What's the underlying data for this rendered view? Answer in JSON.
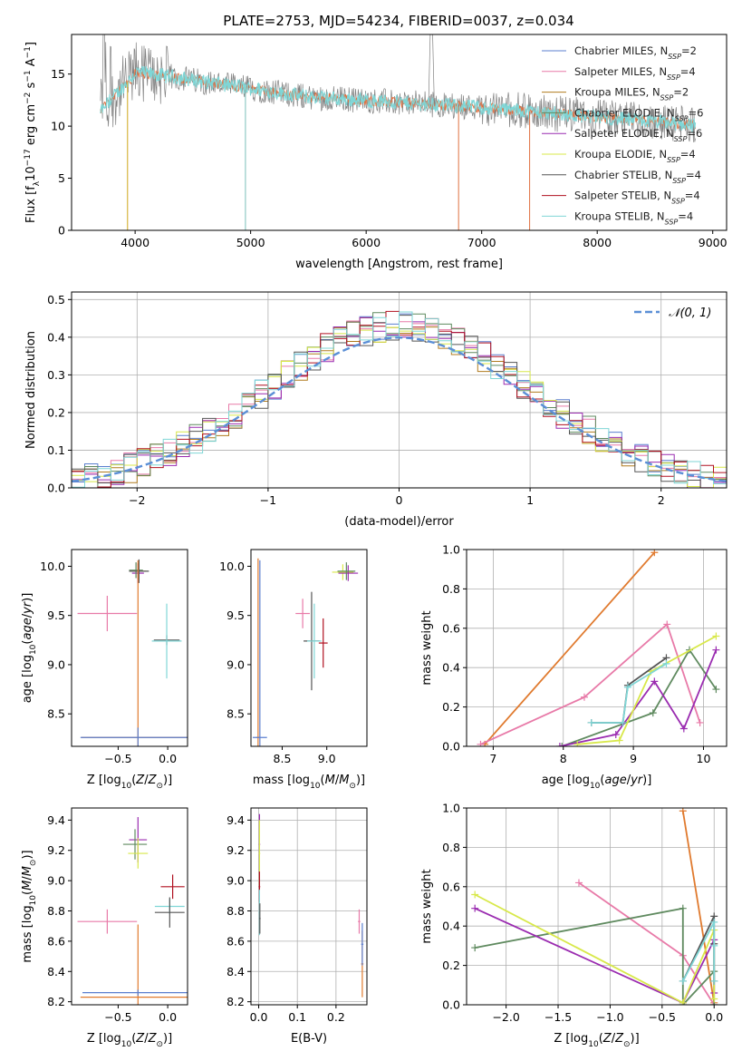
{
  "figure": {
    "title": "PLATE=2753, MJD=54234, FIBERID=0037, z=0.034"
  },
  "legend_series": [
    {
      "name": "Chabrier MILES, N_SSP=2",
      "main": "Chabrier MILES, N",
      "sub": "SSP",
      "tail": "=2",
      "color": "#5b7fcf"
    },
    {
      "name": "Salpeter MILES, N_SSP=4",
      "main": "Salpeter MILES, N",
      "sub": "SSP",
      "tail": "=4",
      "color": "#e87aa8"
    },
    {
      "name": "Kroupa MILES, N_SSP=2",
      "main": "Kroupa MILES, N",
      "sub": "SSP",
      "tail": "=2",
      "color": "#b07b1e"
    },
    {
      "name": "Chabrier ELODIE, N_SSP=6",
      "main": "Chabrier ELODIE, N",
      "sub": "SSP",
      "tail": "=6",
      "color": "#5f8a5f"
    },
    {
      "name": "Salpeter ELODIE, N_SSP=6",
      "main": "Salpeter ELODIE, N",
      "sub": "SSP",
      "tail": "=6",
      "color": "#9a2bb0"
    },
    {
      "name": "Kroupa ELODIE, N_SSP=4",
      "main": "Kroupa ELODIE, N",
      "sub": "SSP",
      "tail": "=4",
      "color": "#d8e84a"
    },
    {
      "name": "Chabrier STELIB, N_SSP=4",
      "main": "Chabrier STELIB, N",
      "sub": "SSP",
      "tail": "=4",
      "color": "#555555"
    },
    {
      "name": "Salpeter STELIB, N_SSP=4",
      "main": "Salpeter STELIB, N",
      "sub": "SSP",
      "tail": "=4",
      "color": "#b01020"
    },
    {
      "name": "Kroupa STELIB, N_SSP=4",
      "main": "Kroupa STELIB, N",
      "sub": "SSP",
      "tail": "=4",
      "color": "#7fd6d6"
    }
  ],
  "colors": {
    "data": "#808080",
    "model_main": "#7fd6d6",
    "model_alt": "#e07040",
    "normal_curve": "#5b8fd6",
    "orange_line": "#e07a2e",
    "grid": "#b0b0b0"
  },
  "chart_data": [
    {
      "id": "spectrum",
      "type": "line",
      "title": "PLATE=2753, MJD=54234, FIBERID=0037, z=0.034",
      "xlabel": "wavelength [Angstrom, rest frame]",
      "ylabel_parts": [
        "Flux [f",
        "λ",
        "10",
        "−17",
        " erg cm",
        "−2",
        " s",
        "−1",
        " A",
        "−1",
        "]"
      ],
      "xlim": [
        3450,
        9120
      ],
      "ylim": [
        0,
        18.8
      ],
      "xticks": [
        4000,
        5000,
        6000,
        7000,
        8000,
        9000
      ],
      "yticks": [
        0,
        5,
        10,
        15
      ],
      "grid": false,
      "legend_position": "upper right",
      "data_range": [
        3700,
        8850
      ],
      "absorption_lines": [
        {
          "x": 3934,
          "y": 0.0
        },
        {
          "x": 4955,
          "y": 0.0
        },
        {
          "x": 6800,
          "y": 0.0
        },
        {
          "x": 7415,
          "y": 0.0
        }
      ]
    },
    {
      "id": "residuals",
      "type": "histogram",
      "xlabel": "(data-model)/error",
      "ylabel": "Normed distribution",
      "xlim": [
        -2.5,
        2.5
      ],
      "ylim": [
        0,
        0.52
      ],
      "xticks": [
        -2,
        -1,
        0,
        1,
        2
      ],
      "xticklabels": [
        "−2",
        "−1",
        "0",
        "1",
        "2"
      ],
      "yticks": [
        0.0,
        0.1,
        0.2,
        0.3,
        0.4,
        0.5
      ],
      "grid": true,
      "legend": "𝒩(0, 1)",
      "legend_position": "upper right",
      "bin_width": 0.1
    },
    {
      "id": "z-age",
      "type": "errorbar",
      "xlabel": "Z [log10(Z/Z⊙)]",
      "ylabel": "age  [log10(age/yr)]",
      "xlim": [
        -0.97,
        0.2
      ],
      "ylim": [
        8.17,
        10.17
      ],
      "xticks": [
        -0.5,
        0.0
      ],
      "xticklabels": [
        "−0.5",
        "0.0"
      ],
      "yticks": [
        8.5,
        9.0,
        9.5,
        10.0
      ],
      "grid": false,
      "points": [
        {
          "x": -0.61,
          "y": 9.52,
          "xerr": 0.3,
          "yerr": 0.18,
          "color": "#e87aa8"
        },
        {
          "x": -0.3,
          "y": 9.95,
          "xerr": 0.08,
          "yerr": 0.08,
          "color": "#d8e84a"
        },
        {
          "x": -0.3,
          "y": 9.93,
          "xerr": 0.06,
          "yerr": 0.1,
          "color": "#9a2bb0"
        },
        {
          "x": -0.32,
          "y": 9.96,
          "xerr": 0.07,
          "yerr": 0.08,
          "color": "#5f8a5f"
        },
        {
          "x": -0.29,
          "y": 9.95,
          "xerr": 0.1,
          "yerr": 0.12,
          "color": "#555555"
        },
        {
          "x": -0.01,
          "y": 9.25,
          "xerr": 0.13,
          "yerr": 0.05,
          "color": "#555555"
        },
        {
          "x": -0.01,
          "y": 9.24,
          "xerr": 0.15,
          "yerr": 0.38,
          "color": "#7fd6d6"
        },
        {
          "x": -0.3,
          "y": 8.26,
          "xerr": 0.57,
          "yerr": 1.8,
          "color": "#e07a2e"
        },
        {
          "x": -0.3,
          "y": 8.26,
          "xerr": 0.58,
          "yerr": 0.1,
          "color": "#5b7fcf"
        }
      ]
    },
    {
      "id": "mass-age",
      "type": "errorbar",
      "xlabel": "mass [log10(M/M⊙)]",
      "xlim": [
        8.15,
        9.45
      ],
      "ylim": [
        8.17,
        10.17
      ],
      "xticks": [
        8.5,
        9.0
      ],
      "yticks": [
        8.5,
        9.0,
        9.5,
        10.0
      ],
      "grid": false,
      "points": [
        {
          "x": 8.73,
          "y": 9.52,
          "xerr": 0.08,
          "yerr": 0.15,
          "color": "#e87aa8"
        },
        {
          "x": 9.18,
          "y": 9.94,
          "xerr": 0.12,
          "yerr": 0.08,
          "color": "#d8e84a"
        },
        {
          "x": 9.24,
          "y": 9.93,
          "xerr": 0.11,
          "yerr": 0.08,
          "color": "#9a2bb0"
        },
        {
          "x": 9.22,
          "y": 9.95,
          "xerr": 0.1,
          "yerr": 0.09,
          "color": "#5f8a5f"
        },
        {
          "x": 8.83,
          "y": 9.24,
          "xerr": 0.09,
          "yerr": 0.5,
          "color": "#555555"
        },
        {
          "x": 8.86,
          "y": 9.24,
          "xerr": 0.08,
          "yerr": 0.38,
          "color": "#7fd6d6"
        },
        {
          "x": 8.96,
          "y": 9.22,
          "xerr": 0.05,
          "yerr": 0.25,
          "color": "#b01020"
        },
        {
          "x": 8.23,
          "y": 8.26,
          "xerr": 0.02,
          "yerr": 1.82,
          "color": "#e07a2e"
        },
        {
          "x": 8.25,
          "y": 8.26,
          "xerr": 0.08,
          "yerr": 1.8,
          "color": "#5b7fcf"
        }
      ]
    },
    {
      "id": "age-weight",
      "type": "line",
      "xlabel": "age  [log10(age/yr)]",
      "ylabel": "mass weight",
      "xlim": [
        6.62,
        10.33
      ],
      "ylim": [
        0,
        1.0
      ],
      "xticks": [
        7,
        8,
        9,
        10
      ],
      "yticks": [
        0.0,
        0.2,
        0.4,
        0.6,
        0.8,
        1.0
      ],
      "grid": true,
      "series": [
        {
          "color": "#e07a2e",
          "x": [
            6.88,
            9.3
          ],
          "y": [
            0.01,
            0.985
          ]
        },
        {
          "color": "#e87aa8",
          "x": [
            6.82,
            8.3,
            9.48,
            9.95
          ],
          "y": [
            0.01,
            0.25,
            0.62,
            0.12
          ]
        },
        {
          "color": "#5f8a5f",
          "x": [
            7.98,
            9.28,
            9.8,
            10.18
          ],
          "y": [
            0.0,
            0.17,
            0.49,
            0.29
          ]
        },
        {
          "color": "#9a2bb0",
          "x": [
            7.95,
            8.75,
            9.3,
            9.72,
            10.18
          ],
          "y": [
            0.0,
            0.06,
            0.33,
            0.09,
            0.49
          ]
        },
        {
          "color": "#d8e84a",
          "x": [
            8.2,
            8.8,
            9.25,
            10.18
          ],
          "y": [
            0.01,
            0.03,
            0.38,
            0.56
          ]
        },
        {
          "color": "#555555",
          "x": [
            8.4,
            8.85,
            8.92,
            9.47
          ],
          "y": [
            0.12,
            0.12,
            0.31,
            0.45
          ]
        },
        {
          "color": "#7fd6d6",
          "x": [
            8.4,
            8.85,
            8.92,
            9.47
          ],
          "y": [
            0.12,
            0.12,
            0.3,
            0.42
          ]
        }
      ]
    },
    {
      "id": "z-mass",
      "type": "errorbar",
      "xlabel": "Z [log10(Z/Z⊙)]",
      "ylabel": "mass [log10(M/M⊙)]",
      "xlim": [
        -0.97,
        0.2
      ],
      "ylim": [
        8.18,
        9.48
      ],
      "xticks": [
        -0.5,
        0.0
      ],
      "xticklabels": [
        "−0.5",
        "0.0"
      ],
      "yticks": [
        8.2,
        8.4,
        8.6,
        8.8,
        9.0,
        9.2,
        9.4
      ],
      "grid": false,
      "points": [
        {
          "x": -0.61,
          "y": 8.73,
          "xerr": 0.3,
          "yerr": 0.08,
          "color": "#e87aa8"
        },
        {
          "x": -0.3,
          "y": 9.27,
          "xerr": 0.09,
          "yerr": 0.15,
          "color": "#9a2bb0"
        },
        {
          "x": -0.33,
          "y": 9.24,
          "xerr": 0.12,
          "yerr": 0.1,
          "color": "#5f8a5f"
        },
        {
          "x": -0.3,
          "y": 9.18,
          "xerr": 0.1,
          "yerr": 0.1,
          "color": "#d8e84a"
        },
        {
          "x": 0.05,
          "y": 8.96,
          "xerr": 0.12,
          "yerr": 0.08,
          "color": "#b01020"
        },
        {
          "x": 0.02,
          "y": 8.83,
          "xerr": 0.15,
          "yerr": 0.05,
          "color": "#7fd6d6"
        },
        {
          "x": 0.02,
          "y": 8.79,
          "xerr": 0.15,
          "yerr": 0.1,
          "color": "#555555"
        },
        {
          "x": -0.3,
          "y": 8.23,
          "xerr": 0.58,
          "yerr": 0.48,
          "color": "#e07a2e"
        },
        {
          "x": -0.3,
          "y": 8.26,
          "xerr": 0.56,
          "yerr": 0.02,
          "color": "#5b7fcf"
        }
      ]
    },
    {
      "id": "ebv-mass",
      "type": "errorbar",
      "xlabel": "E(B-V)",
      "xlim": [
        -0.02,
        0.28
      ],
      "ylim": [
        8.18,
        9.48
      ],
      "xticks": [
        0.0,
        0.1,
        0.2
      ],
      "yticks": [
        8.2,
        8.4,
        8.6,
        8.8,
        9.0,
        9.2,
        9.4
      ],
      "grid": true,
      "points": [
        {
          "x": 0.002,
          "y": 9.24,
          "xerr": 0.002,
          "yerr": 0.2,
          "color": "#9a2bb0"
        },
        {
          "x": 0.002,
          "y": 9.18,
          "xerr": 0.002,
          "yerr": 0.22,
          "color": "#d8e84a"
        },
        {
          "x": 0.002,
          "y": 8.96,
          "xerr": 0.002,
          "yerr": 0.1,
          "color": "#b01020"
        },
        {
          "x": 0.002,
          "y": 8.79,
          "xerr": 0.002,
          "yerr": 0.15,
          "color": "#7fd6d6"
        },
        {
          "x": 0.003,
          "y": 8.75,
          "xerr": 0.002,
          "yerr": 0.1,
          "color": "#555555"
        },
        {
          "x": 0.26,
          "y": 8.73,
          "xerr": 0.003,
          "yerr": 0.08,
          "color": "#e87aa8"
        },
        {
          "x": 0.268,
          "y": 8.45,
          "xerr": 0.003,
          "yerr": 0.22,
          "color": "#e07a2e"
        },
        {
          "x": 0.268,
          "y": 8.58,
          "xerr": 0.003,
          "yerr": 0.14,
          "color": "#5b7fcf"
        }
      ]
    },
    {
      "id": "z-weight",
      "type": "line",
      "xlabel": "Z [log10(Z/Z⊙)]",
      "ylabel": "mass weight",
      "xlim": [
        -2.38,
        0.12
      ],
      "ylim": [
        0,
        1.0
      ],
      "xticks": [
        -2.0,
        -1.5,
        -1.0,
        -0.5,
        0.0
      ],
      "xticklabels": [
        "−2.0",
        "−1.5",
        "−1.0",
        "−0.5",
        "0.0"
      ],
      "yticks": [
        0.0,
        0.2,
        0.4,
        0.6,
        0.8,
        1.0
      ],
      "grid": true,
      "series": [
        {
          "color": "#e07a2e",
          "x": [
            -0.3,
            0.0
          ],
          "y": [
            0.985,
            0.01
          ]
        },
        {
          "color": "#e87aa8",
          "x": [
            -1.3,
            -0.3,
            0.0
          ],
          "y": [
            0.62,
            0.25,
            0.0
          ]
        },
        {
          "color": "#5f8a5f",
          "x": [
            -2.3,
            -0.3,
            -0.3,
            0.0,
            0.0
          ],
          "y": [
            0.29,
            0.49,
            0.0,
            0.17,
            0.0
          ]
        },
        {
          "color": "#9a2bb0",
          "x": [
            -2.3,
            -0.3,
            0.0,
            0.0
          ],
          "y": [
            0.49,
            0.01,
            0.33,
            0.06
          ]
        },
        {
          "color": "#d8e84a",
          "x": [
            -2.3,
            -0.3,
            0.0,
            0.0
          ],
          "y": [
            0.56,
            0.01,
            0.38,
            0.03
          ]
        },
        {
          "color": "#555555",
          "x": [
            -0.3,
            0.0,
            0.0,
            0.0
          ],
          "y": [
            0.12,
            0.45,
            0.31,
            0.12
          ]
        },
        {
          "color": "#7fd6d6",
          "x": [
            -0.3,
            0.0,
            0.0,
            0.0
          ],
          "y": [
            0.12,
            0.42,
            0.3,
            0.12
          ]
        }
      ]
    }
  ]
}
